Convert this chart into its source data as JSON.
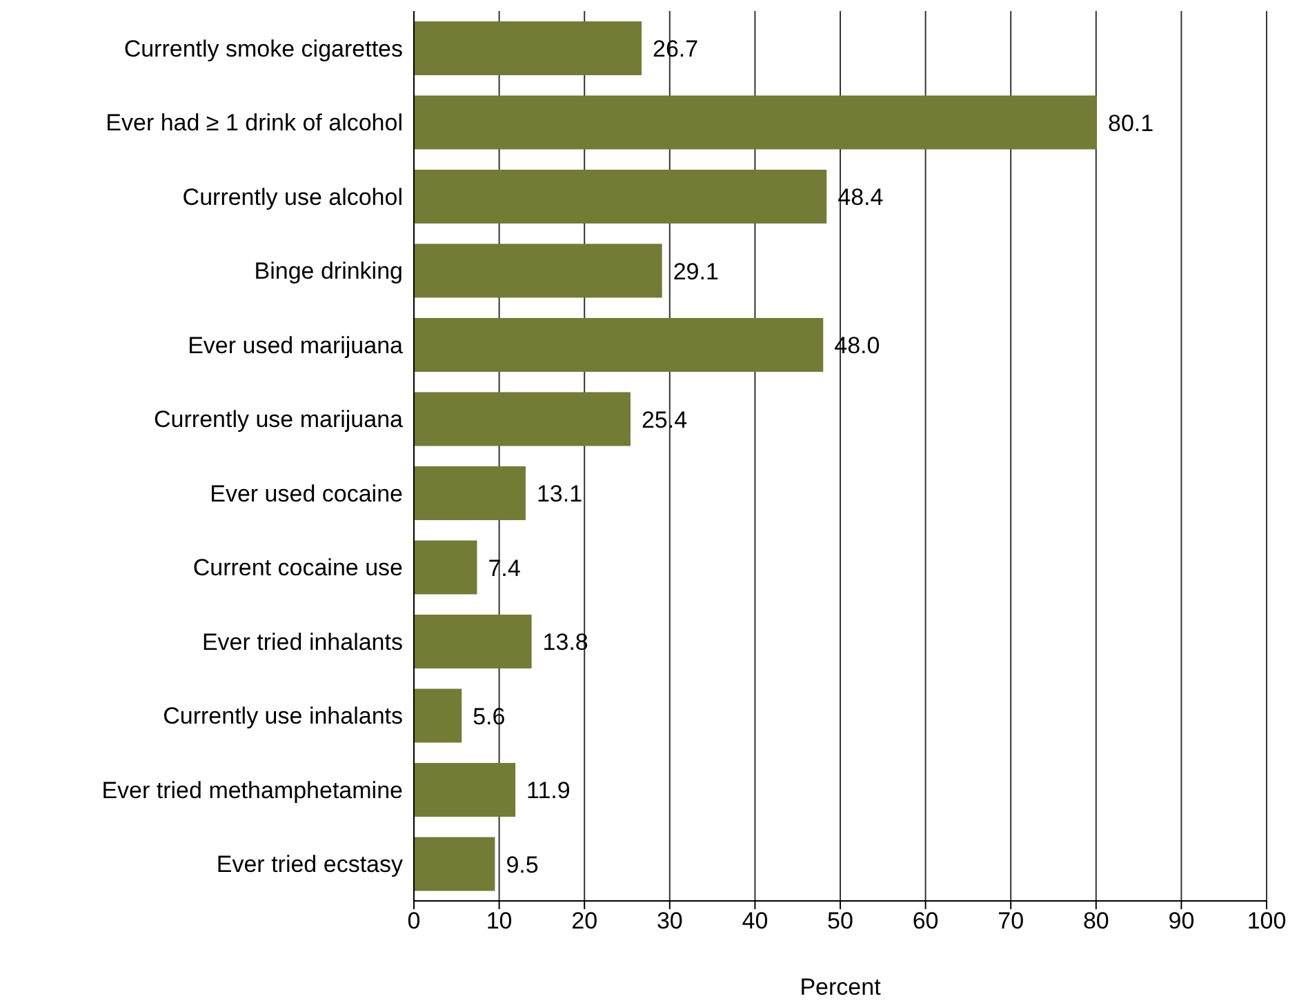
{
  "chart_data": {
    "type": "bar",
    "orientation": "horizontal",
    "xlabel": "Percent",
    "categories": [
      "Currently smoke cigarettes",
      "Ever had ≥ 1 drink of alcohol",
      "Currently use alcohol",
      "Binge drinking",
      "Ever used marijuana",
      "Currently use marijuana",
      "Ever used cocaine",
      "Current cocaine use",
      "Ever tried inhalants",
      "Currently use inhalants",
      "Ever tried methamphetamine",
      "Ever tried ecstasy"
    ],
    "values": [
      26.7,
      80.1,
      48.4,
      29.1,
      48.0,
      25.4,
      13.1,
      7.4,
      13.8,
      5.6,
      11.9,
      9.5
    ],
    "color": "#737b35",
    "xlim": [
      0,
      100
    ],
    "xticks": [
      0,
      10,
      20,
      30,
      40,
      50,
      60,
      70,
      80,
      90,
      100
    ],
    "grid": "x",
    "value_labels": [
      "26.7",
      "80.1",
      "48.4",
      "29.1",
      "48.0",
      "25.4",
      "13.1",
      "7.4",
      "13.8",
      "5.6",
      "11.9",
      "9.5"
    ]
  }
}
